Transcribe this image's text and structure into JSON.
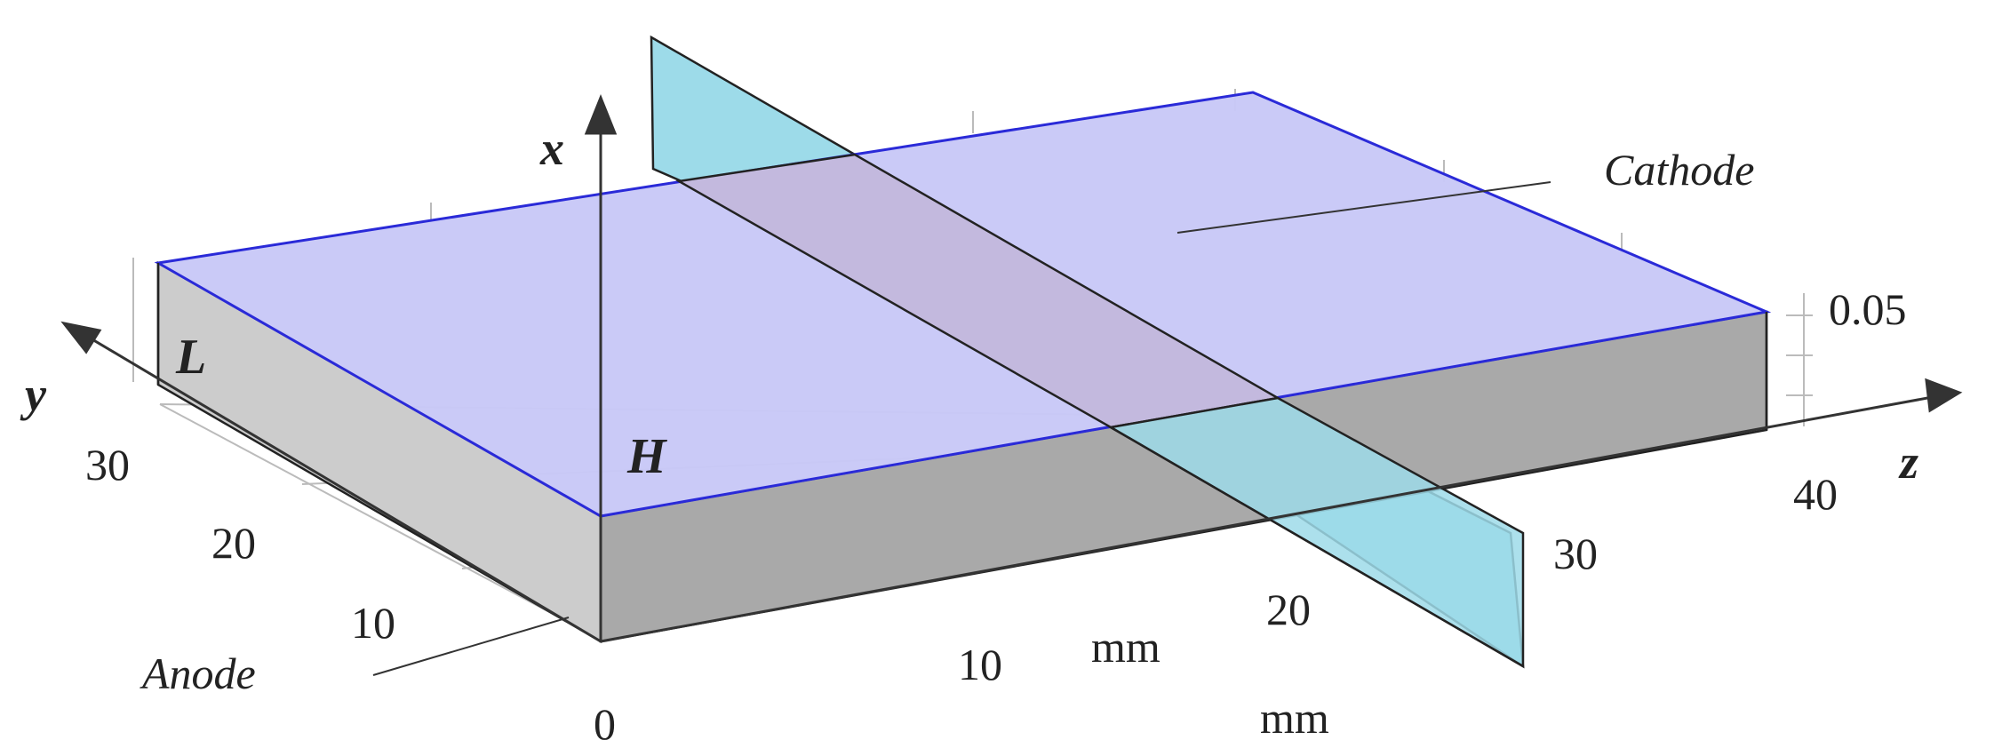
{
  "diagram": {
    "axes": {
      "x": "x",
      "y": "y",
      "z": "z"
    },
    "labels": {
      "cathode": "Cathode",
      "anode": "Anode",
      "H": "H",
      "L": "L",
      "value_0_05": "0.05"
    },
    "units": {
      "z_unit": "mm",
      "y_unit": "mm"
    },
    "z_ticks": [
      "0",
      "10",
      "20",
      "30",
      "40"
    ],
    "y_ticks": [
      "10",
      "20",
      "30"
    ],
    "colors": {
      "top_face": "#c8c8f7",
      "top_edges": "#2a2ad8",
      "front_face": "#a8a8a8",
      "side_face": "#cccccc",
      "plane": "#9ddbe9",
      "plane_overlap": "#c3b9de",
      "axis": "#333333",
      "grid": "#bbbbbb"
    }
  }
}
